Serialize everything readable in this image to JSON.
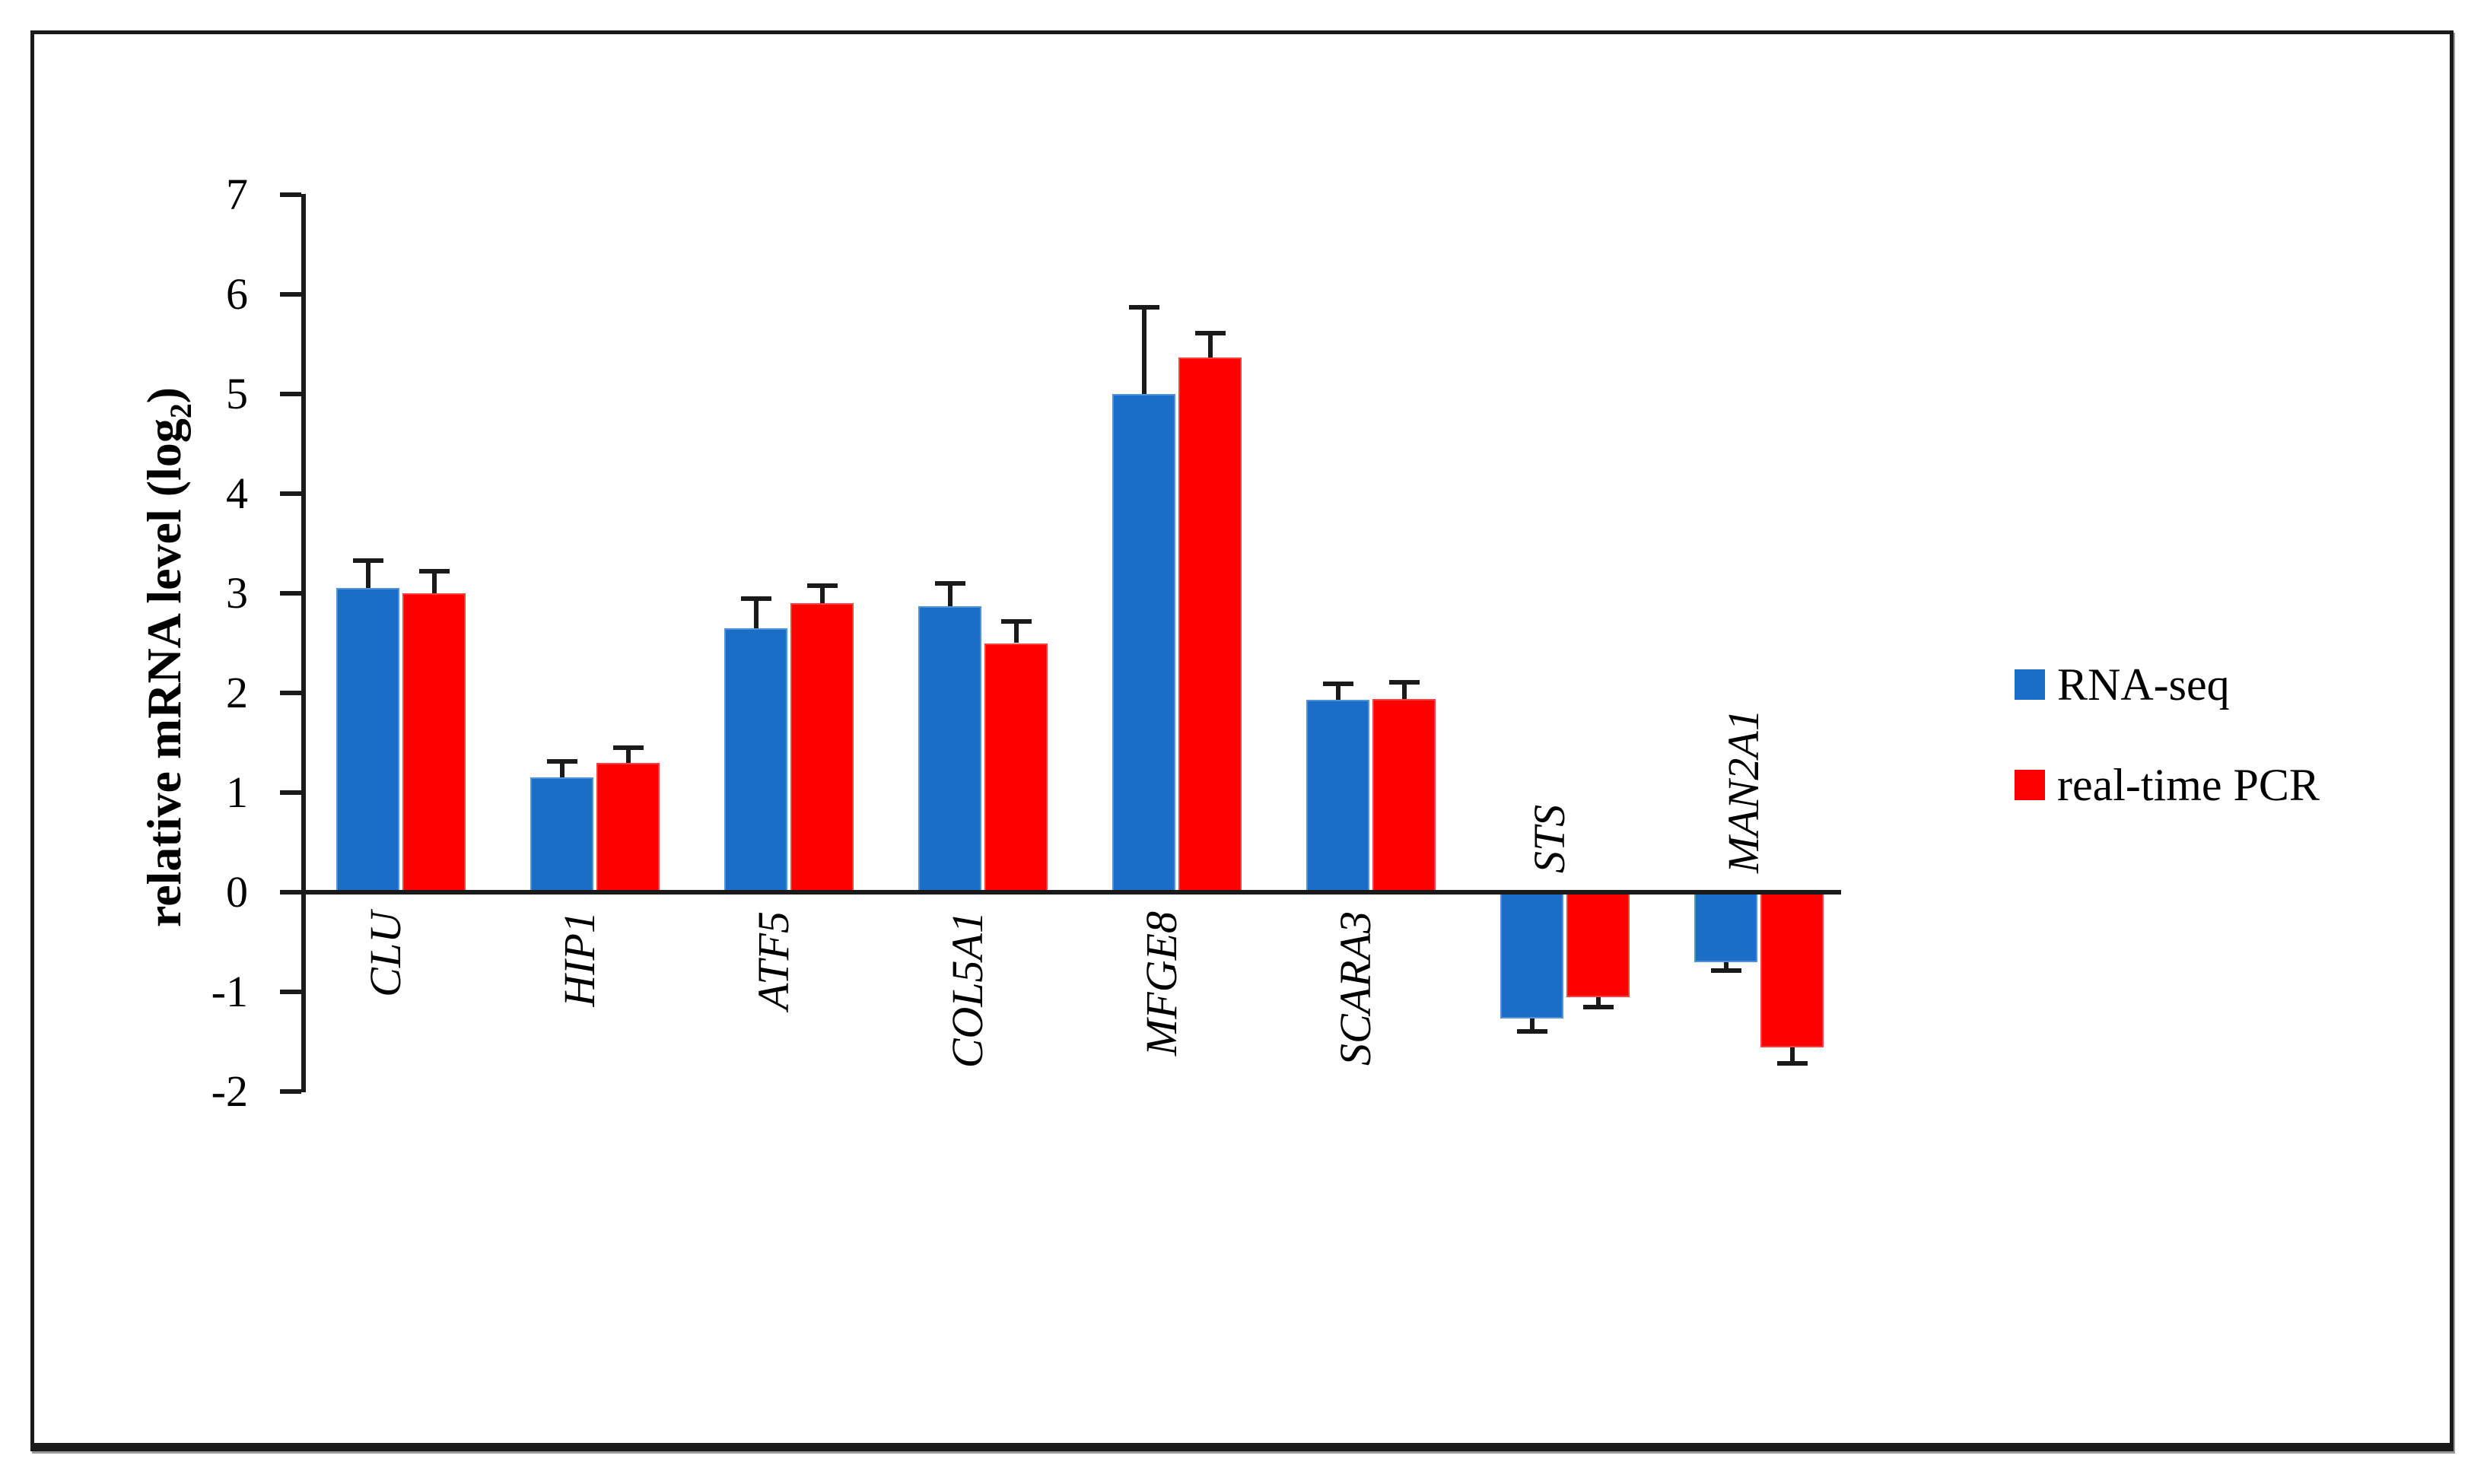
{
  "chart_data": {
    "type": "bar",
    "title": "",
    "ylabel": "relative mRNA level (log2)",
    "ylabel_main": "relative mRNA level (log",
    "ylabel_sub": "2",
    "ylabel_close": ")",
    "xlabel": "",
    "categories": [
      "CLU",
      "HIP1",
      "ATF5",
      "COL5A1",
      "MFGE8",
      "SCARA3",
      "STS",
      "MAN2A1"
    ],
    "series": [
      {
        "name": "RNA-seq",
        "color": "#1b6ec8",
        "values": [
          3.05,
          1.15,
          2.65,
          2.87,
          5.0,
          1.93,
          -1.27,
          -0.7
        ],
        "errors": [
          0.28,
          0.16,
          0.3,
          0.23,
          0.87,
          0.16,
          0.13,
          0.09
        ]
      },
      {
        "name": "real-time PCR",
        "color": "#fe0000",
        "values": [
          3.0,
          1.3,
          2.9,
          2.5,
          5.37,
          1.94,
          -1.05,
          -1.56
        ],
        "errors": [
          0.22,
          0.15,
          0.18,
          0.22,
          0.24,
          0.17,
          0.1,
          0.16
        ]
      }
    ],
    "ylim": [
      -2,
      7
    ],
    "yticks": [
      7,
      6,
      5,
      4,
      3,
      2,
      1,
      0,
      -1,
      -2
    ],
    "grid": false,
    "legend_position": "right",
    "error_bars": true
  }
}
